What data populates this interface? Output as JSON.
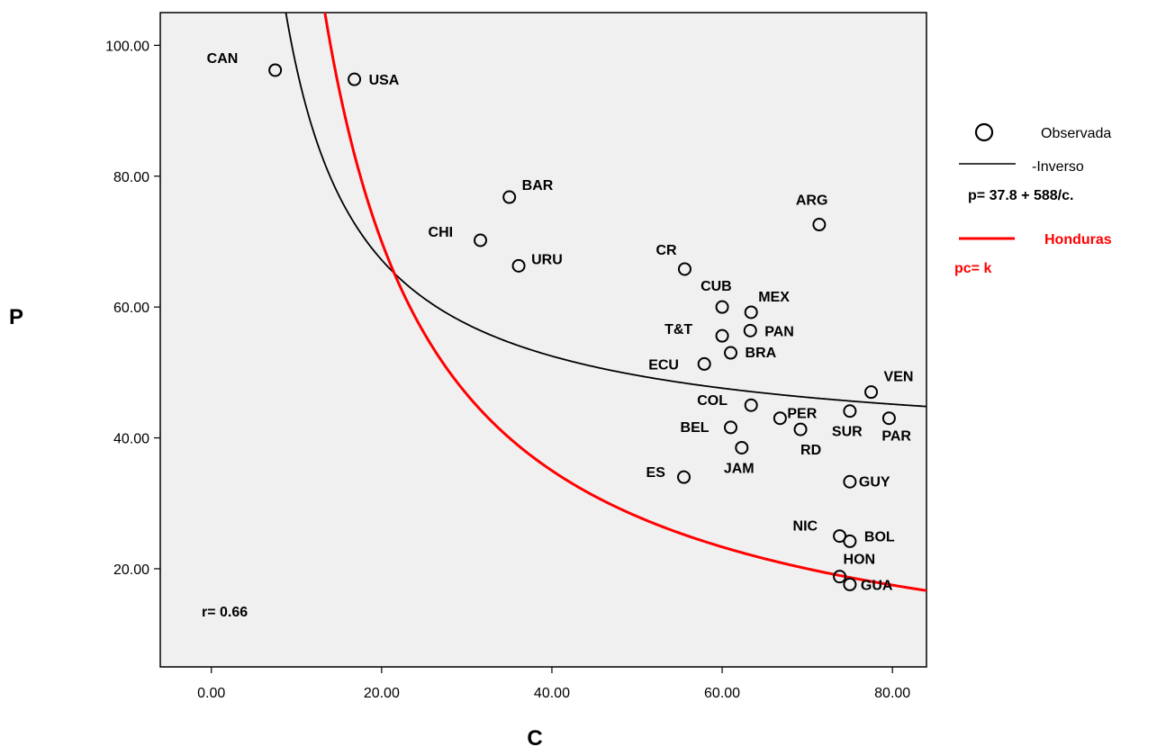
{
  "chart_data": {
    "type": "scatter",
    "xlabel": "C",
    "ylabel": "P",
    "xlim": [
      -6,
      84
    ],
    "ylim": [
      5,
      105
    ],
    "x_ticks": [
      0,
      20,
      40,
      60,
      80
    ],
    "y_ticks": [
      20,
      40,
      60,
      80,
      100
    ],
    "x_tick_labels": [
      "0.00",
      "20.00",
      "40.00",
      "60.00",
      "80.00"
    ],
    "y_tick_labels": [
      "20.00",
      "40.00",
      "60.00",
      "80.00",
      "100.00"
    ],
    "grid": false,
    "annotation": "r= 0.66",
    "points": [
      {
        "label": "CAN",
        "x": 7.5,
        "y": 96.2
      },
      {
        "label": "USA",
        "x": 16.8,
        "y": 94.8
      },
      {
        "label": "BAR",
        "x": 35.0,
        "y": 76.8
      },
      {
        "label": "CHI",
        "x": 31.6,
        "y": 70.2
      },
      {
        "label": "URU",
        "x": 36.1,
        "y": 66.3
      },
      {
        "label": "ARG",
        "x": 71.4,
        "y": 72.6
      },
      {
        "label": "CR",
        "x": 55.6,
        "y": 65.8
      },
      {
        "label": "CUB",
        "x": 60.0,
        "y": 60.0
      },
      {
        "label": "MEX",
        "x": 63.4,
        "y": 59.2
      },
      {
        "label": "T&T",
        "x": 60.0,
        "y": 55.6
      },
      {
        "label": "PAN",
        "x": 63.3,
        "y": 56.4
      },
      {
        "label": "ECU",
        "x": 57.9,
        "y": 51.3
      },
      {
        "label": "BRA",
        "x": 61.0,
        "y": 53.0
      },
      {
        "label": "VEN",
        "x": 77.5,
        "y": 47.0
      },
      {
        "label": "COL",
        "x": 63.4,
        "y": 45.0
      },
      {
        "label": "PER",
        "x": 66.8,
        "y": 43.0
      },
      {
        "label": "SUR",
        "x": 75.0,
        "y": 44.1
      },
      {
        "label": "PAR",
        "x": 79.6,
        "y": 43.0
      },
      {
        "label": "BEL",
        "x": 61.0,
        "y": 41.6
      },
      {
        "label": "RD",
        "x": 69.2,
        "y": 41.3
      },
      {
        "label": "JAM",
        "x": 62.3,
        "y": 38.5
      },
      {
        "label": "ES",
        "x": 55.5,
        "y": 34.0
      },
      {
        "label": "GUY",
        "x": 75.0,
        "y": 33.3
      },
      {
        "label": "NIC",
        "x": 73.8,
        "y": 25.0
      },
      {
        "label": "BOL",
        "x": 75.0,
        "y": 24.2
      },
      {
        "label": "HON",
        "x": 73.8,
        "y": 18.8
      },
      {
        "label": "GUA",
        "x": 75.0,
        "y": 17.6
      }
    ],
    "series": [
      {
        "name": "Inverso",
        "kind": "fit",
        "formula": "p = 37.8 + 588/c",
        "a": 37.8,
        "b": 588,
        "color": "#000000"
      },
      {
        "name": "Honduras",
        "kind": "curve",
        "formula": "pc = k",
        "k": 1400,
        "color": "#ff0000"
      }
    ],
    "legend": {
      "placement": "right",
      "observed_label": "Observada",
      "inverse_label": "-Inverso",
      "inverse_formula": "p= 37.8  + 588/c.",
      "red_label": "Honduras",
      "red_formula": "pc= k"
    },
    "colors": {
      "plot_background": "#f0f0f0",
      "fit_line": "#000000",
      "red_line": "#ff0000",
      "marker": "#000000"
    }
  }
}
